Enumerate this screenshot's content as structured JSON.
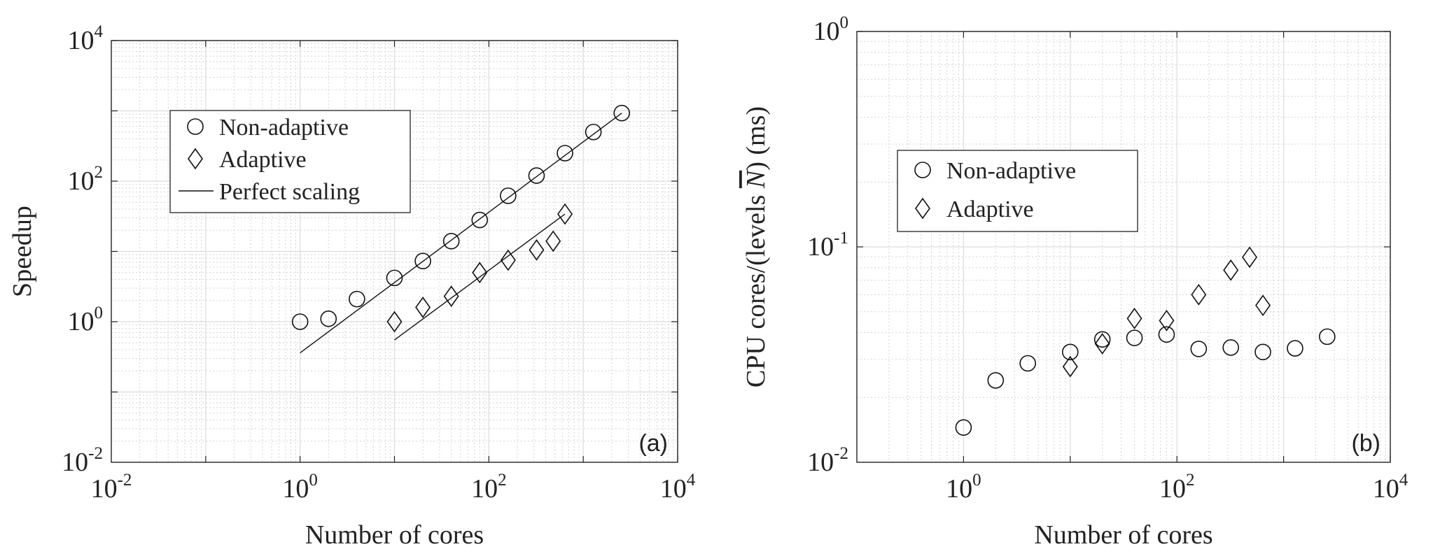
{
  "chart_data": [
    {
      "type": "scatter",
      "panel_label": "(a)",
      "xlabel": "Number of cores",
      "ylabel": "Speedup",
      "xscale": "log",
      "yscale": "log",
      "xlim": [
        0.01,
        10000
      ],
      "ylim": [
        0.01,
        10000
      ],
      "xticks": [
        {
          "base": "10",
          "exp": "-2"
        },
        {
          "base": "10",
          "exp": "0"
        },
        {
          "base": "10",
          "exp": "2"
        },
        {
          "base": "10",
          "exp": "4"
        }
      ],
      "yticks": [
        {
          "base": "10",
          "exp": "-2"
        },
        {
          "base": "10",
          "exp": "0"
        },
        {
          "base": "10",
          "exp": "2"
        },
        {
          "base": "10",
          "exp": "4"
        }
      ],
      "grid": true,
      "legend_position": "upper-left",
      "series": [
        {
          "name": "Non-adaptive",
          "marker": "circle",
          "x": [
            1,
            2,
            4,
            10,
            20,
            40,
            80,
            160,
            320,
            640,
            1280,
            2560
          ],
          "y": [
            1.0,
            1.1,
            2.1,
            4.2,
            7.3,
            14,
            28,
            62,
            120,
            250,
            500,
            930
          ]
        },
        {
          "name": "Adaptive",
          "marker": "diamond",
          "x": [
            10,
            20,
            40,
            80,
            160,
            320,
            480,
            640
          ],
          "y": [
            1.0,
            1.6,
            2.3,
            5.0,
            7.5,
            10.5,
            14,
            34
          ]
        },
        {
          "name": "Perfect scaling",
          "marker": "line",
          "segments": [
            {
              "x": [
                1,
                2560
              ],
              "y": [
                0.36,
                930
              ]
            },
            {
              "x": [
                10,
                640
              ],
              "y": [
                0.55,
                34
              ]
            }
          ]
        }
      ]
    },
    {
      "type": "scatter",
      "panel_label": "(b)",
      "xlabel": "Number of cores",
      "ylabel": "CPU cores/(levels N) (ms)",
      "ylabel_parts": {
        "before": "CPU cores/(levels ",
        "symbol": "N",
        "after": ") (ms)"
      },
      "xscale": "log",
      "yscale": "log",
      "xlim": [
        0.1,
        10000
      ],
      "ylim": [
        0.01,
        1
      ],
      "xticks": [
        {
          "base": "10",
          "exp": "0"
        },
        {
          "base": "10",
          "exp": "2"
        },
        {
          "base": "10",
          "exp": "4"
        }
      ],
      "yticks": [
        {
          "base": "10",
          "exp": "-2"
        },
        {
          "base": "10",
          "exp": "-1"
        },
        {
          "base": "10",
          "exp": "0"
        }
      ],
      "grid": true,
      "legend_position": "middle-left",
      "series": [
        {
          "name": "Non-adaptive",
          "marker": "circle",
          "x": [
            1,
            2,
            4,
            10,
            20,
            40,
            80,
            160,
            320,
            640,
            1280,
            2560
          ],
          "y": [
            0.0145,
            0.024,
            0.0288,
            0.0325,
            0.0372,
            0.0378,
            0.0392,
            0.0336,
            0.0341,
            0.0325,
            0.0338,
            0.0383
          ]
        },
        {
          "name": "Adaptive",
          "marker": "diamond",
          "x": [
            10,
            20,
            40,
            80,
            160,
            320,
            480,
            640
          ],
          "y": [
            0.0278,
            0.0355,
            0.0465,
            0.0455,
            0.06,
            0.078,
            0.0895,
            0.0535
          ]
        }
      ]
    }
  ]
}
